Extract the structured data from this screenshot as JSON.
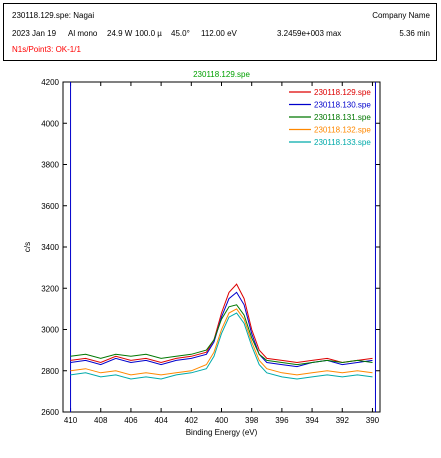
{
  "header": {
    "file_label": "230118.129.spe: Nagai",
    "company": "Company Name",
    "date": "2023 Jan 19",
    "source": "Al mono",
    "power": "24.9 W",
    "spot": "100.0 µ",
    "angle": "45.0°",
    "pass_energy": "112.00 eV",
    "max_counts": "3.2459e+003 max",
    "duration": "5.36 min",
    "region": "N1s/Point3: OK-1/1"
  },
  "colors": {
    "header_region_text": "#ff0000",
    "title_text": "#00a000",
    "marker_lines": "#0000cc"
  },
  "chart_data": {
    "type": "line",
    "title": "230118.129.spe",
    "xlabel": "Binding Energy (eV)",
    "ylabel": "c/s",
    "xlim": [
      410.5,
      389.5
    ],
    "ylim": [
      2600,
      4200
    ],
    "x_reversed": true,
    "xticks": [
      410,
      408,
      406,
      404,
      402,
      400,
      398,
      396,
      394,
      392,
      390
    ],
    "yticks": [
      2600,
      2800,
      3000,
      3200,
      3400,
      3600,
      3800,
      4000,
      4200
    ],
    "legend_position": "top-right",
    "grid": false,
    "vertical_markers": [
      410,
      389.8
    ],
    "x": [
      410.0,
      409.0,
      408.0,
      407.0,
      406.0,
      405.0,
      404.0,
      403.0,
      402.0,
      401.0,
      400.5,
      400.0,
      399.5,
      399.0,
      398.5,
      398.0,
      397.5,
      397.0,
      396.0,
      395.0,
      394.0,
      393.0,
      392.0,
      391.0,
      390.0
    ],
    "series": [
      {
        "name": "230118.129.spe",
        "color": "#dd0000",
        "values": [
          2850,
          2860,
          2840,
          2870,
          2850,
          2860,
          2840,
          2860,
          2870,
          2890,
          2950,
          3080,
          3180,
          3220,
          3150,
          3000,
          2900,
          2860,
          2850,
          2840,
          2850,
          2860,
          2840,
          2850,
          2860
        ]
      },
      {
        "name": "230118.130.spe",
        "color": "#0000cc",
        "values": [
          2840,
          2850,
          2830,
          2860,
          2840,
          2850,
          2830,
          2850,
          2860,
          2880,
          2940,
          3060,
          3150,
          3180,
          3120,
          2980,
          2880,
          2840,
          2830,
          2820,
          2840,
          2850,
          2830,
          2840,
          2850
        ]
      },
      {
        "name": "230118.131.spe",
        "color": "#007700",
        "values": [
          2870,
          2880,
          2860,
          2880,
          2870,
          2880,
          2860,
          2870,
          2880,
          2900,
          2950,
          3050,
          3110,
          3120,
          3070,
          2960,
          2880,
          2850,
          2840,
          2830,
          2840,
          2850,
          2840,
          2850,
          2840
        ]
      },
      {
        "name": "230118.132.spe",
        "color": "#ff8800",
        "values": [
          2800,
          2810,
          2790,
          2800,
          2780,
          2790,
          2780,
          2790,
          2800,
          2830,
          2890,
          3000,
          3080,
          3100,
          3050,
          2940,
          2850,
          2810,
          2790,
          2780,
          2790,
          2800,
          2790,
          2800,
          2790
        ]
      },
      {
        "name": "230118.133.spe",
        "color": "#00aaaa",
        "values": [
          2780,
          2790,
          2770,
          2780,
          2760,
          2770,
          2760,
          2780,
          2790,
          2810,
          2870,
          2980,
          3060,
          3080,
          3030,
          2920,
          2830,
          2790,
          2770,
          2760,
          2770,
          2780,
          2770,
          2780,
          2770
        ]
      }
    ]
  }
}
